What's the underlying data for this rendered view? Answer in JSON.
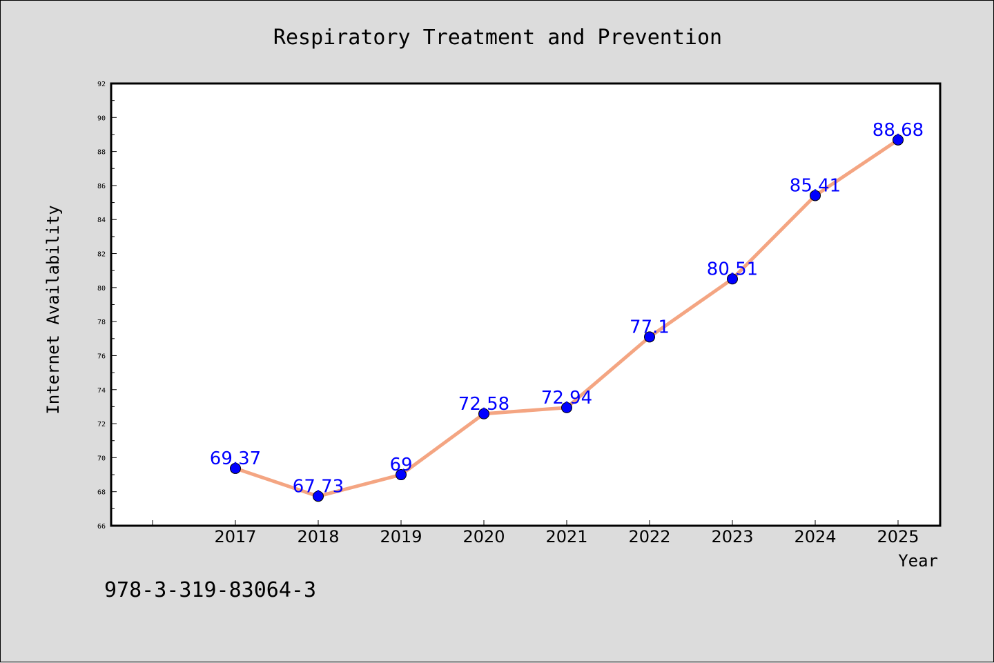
{
  "chart_data": {
    "type": "line",
    "title": "Respiratory Treatment and Prevention",
    "xlabel": "Year",
    "ylabel": "Internet Availability",
    "categories": [
      "2017",
      "2018",
      "2019",
      "2020",
      "2021",
      "2022",
      "2023",
      "2024",
      "2025"
    ],
    "series": [
      {
        "values": [
          69.37,
          67.73,
          69,
          72.58,
          72.94,
          77.1,
          80.51,
          85.41,
          88.68
        ],
        "labels": [
          "69.37",
          "67.73",
          "69",
          "72.58",
          "72.94",
          "77.1",
          "80.51",
          "85.41",
          "88.68"
        ],
        "line_color": "#f4a582",
        "marker_color": "#0000ff",
        "label_color": "#0000ff"
      }
    ],
    "ylim": [
      66,
      92
    ],
    "yticks": [
      66,
      68,
      70,
      72,
      74,
      76,
      78,
      80,
      82,
      84,
      86,
      88,
      90,
      92
    ],
    "ytick_labels": [
      "66",
      "68",
      "70",
      "72",
      "74",
      "76",
      "78",
      "80",
      "82",
      "84",
      "86",
      "88",
      "90",
      "92"
    ],
    "grid": false,
    "legend": "none",
    "background": "#dcdcdc",
    "plot_background": "#ffffff"
  },
  "footer": {
    "text": "978-3-319-83064-3"
  }
}
